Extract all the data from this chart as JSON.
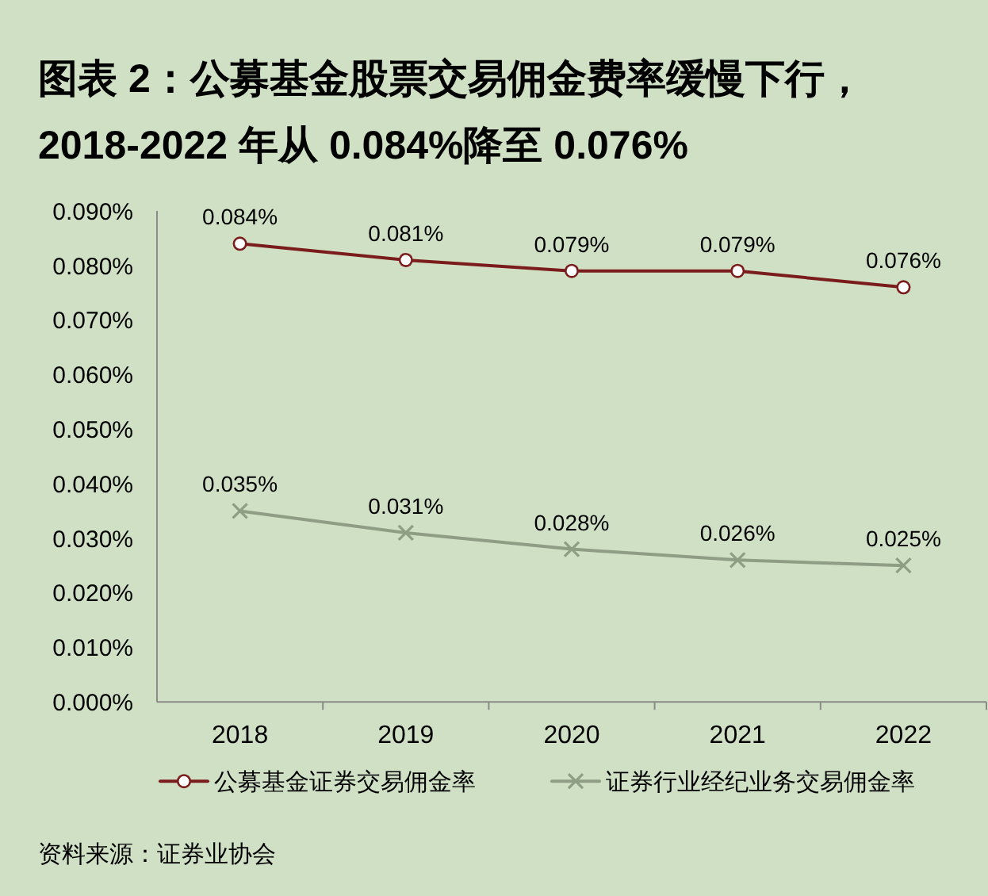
{
  "chart_data": {
    "type": "line",
    "title": "图表 2：公募基金股票交易佣金费率缓慢下行，2018-2022 年从 0.084%降至 0.076%",
    "annotations": [
      "资料来源：证券业协会"
    ],
    "categories": [
      "2018",
      "2019",
      "2020",
      "2021",
      "2022"
    ],
    "series": [
      {
        "name": "公募基金证券交易佣金率",
        "color": "#7b1c1c",
        "marker": "circle",
        "values": [
          0.084,
          0.081,
          0.079,
          0.079,
          0.076
        ],
        "value_labels": [
          "0.084%",
          "0.081%",
          "0.079%",
          "0.079%",
          "0.076%"
        ]
      },
      {
        "name": "证券行业经纪业务交易佣金率",
        "color": "#8e9d84",
        "marker": "cross",
        "values": [
          0.035,
          0.031,
          0.028,
          0.026,
          0.025
        ],
        "value_labels": [
          "0.035%",
          "0.031%",
          "0.028%",
          "0.026%",
          "0.025%"
        ]
      }
    ],
    "ylim": [
      0,
      0.09
    ],
    "yticks": [
      {
        "value": 0,
        "label": "0.000%"
      },
      {
        "value": 0.01,
        "label": "0.010%"
      },
      {
        "value": 0.02,
        "label": "0.020%"
      },
      {
        "value": 0.03,
        "label": "0.030%"
      },
      {
        "value": 0.04,
        "label": "0.040%"
      },
      {
        "value": 0.05,
        "label": "0.050%"
      },
      {
        "value": 0.06,
        "label": "0.060%"
      },
      {
        "value": 0.07,
        "label": "0.070%"
      },
      {
        "value": 0.08,
        "label": "0.080%"
      },
      {
        "value": 0.09,
        "label": "0.090%"
      }
    ],
    "legend": "bottom",
    "line_style": "solid"
  }
}
